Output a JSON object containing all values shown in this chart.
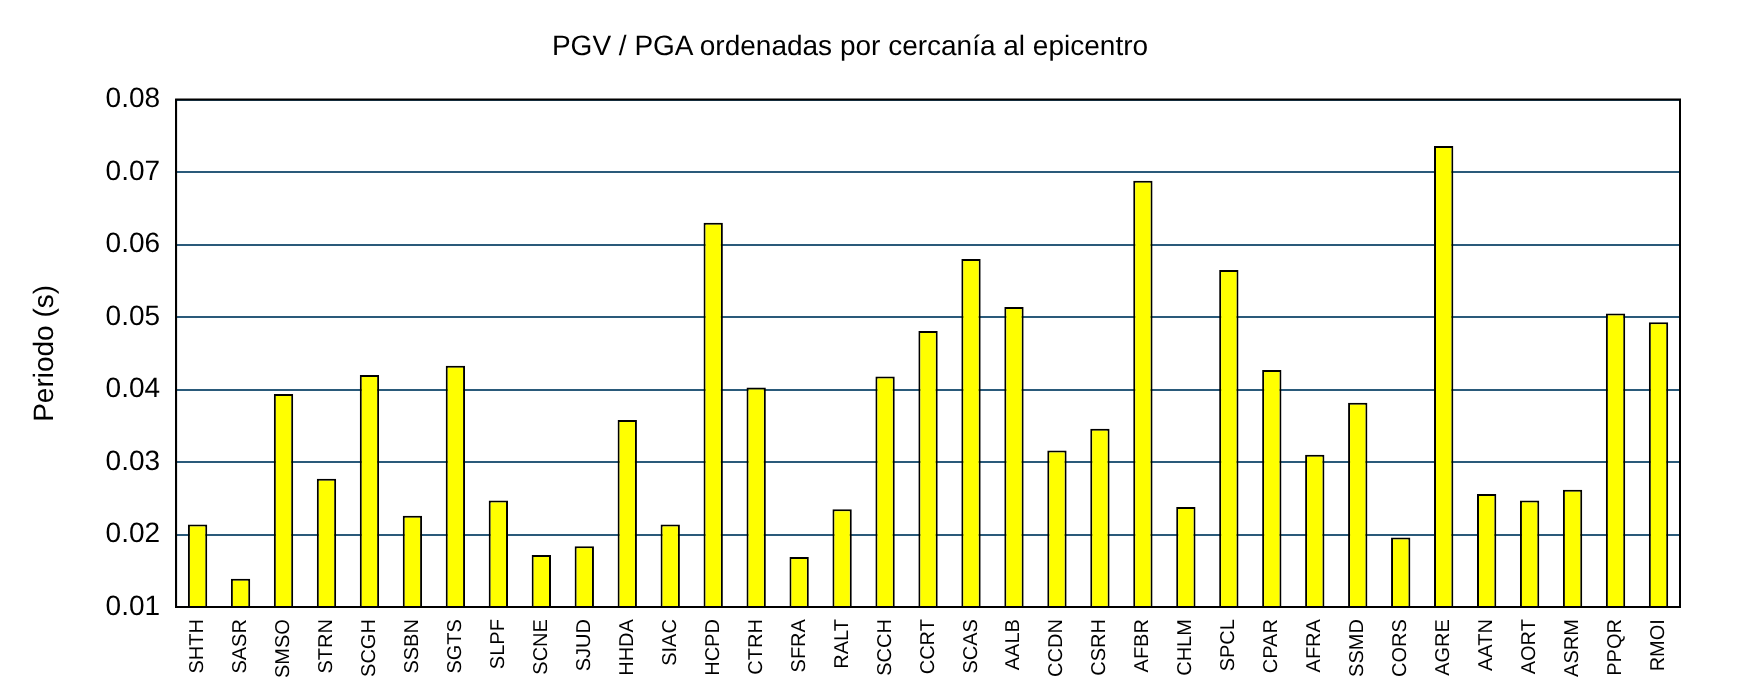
{
  "chart_data": {
    "type": "bar",
    "title": "PGV / PGA ordenadas por cercanía al epicentro",
    "ylabel": "Periodo (s)",
    "categories": [
      "SHTH",
      "SASR",
      "SMSO",
      "STRN",
      "SCGH",
      "SSBN",
      "SGTS",
      "SLPF",
      "SCNE",
      "SJUD",
      "HHDA",
      "SIAC",
      "HCPD",
      "CTRH",
      "SFRA",
      "RALT",
      "SCCH",
      "CCRT",
      "SCAS",
      "AALB",
      "CCDN",
      "CSRH",
      "AFBR",
      "CHLM",
      "SPCL",
      "CPAR",
      "AFRA",
      "SSMD",
      "CORS",
      "AGRE",
      "AATN",
      "AORT",
      "ASRM",
      "PPQR",
      "RMOI"
    ],
    "values": [
      0.0214,
      0.0139,
      0.0394,
      0.0277,
      0.042,
      0.0226,
      0.0433,
      0.0247,
      0.0172,
      0.0184,
      0.0358,
      0.0214,
      0.063,
      0.0403,
      0.0169,
      0.0235,
      0.0418,
      0.0481,
      0.058,
      0.0514,
      0.0316,
      0.0346,
      0.0688,
      0.0238,
      0.0565,
      0.0427,
      0.031,
      0.0382,
      0.0196,
      0.0736,
      0.0256,
      0.0247,
      0.0262,
      0.0505,
      0.0493
    ],
    "color": "#ffff00",
    "ylim": [
      0.01,
      0.08
    ],
    "yticks": [
      0.01,
      0.02,
      0.03,
      0.04,
      0.05,
      0.06,
      0.07,
      0.08
    ],
    "grid": "y"
  }
}
